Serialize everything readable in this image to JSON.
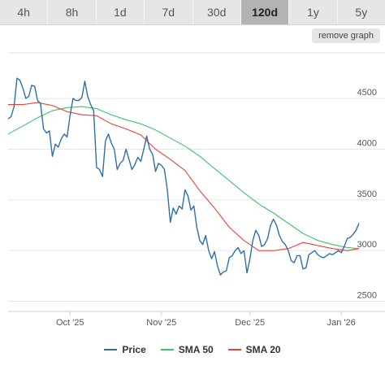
{
  "toolbar": {
    "tabs": [
      "4h",
      "8h",
      "1d",
      "7d",
      "30d",
      "120d",
      "1y",
      "5y"
    ],
    "active_index": 5,
    "remove_label": "remove graph"
  },
  "chart_data": {
    "type": "line",
    "x_start": "2025-09-10",
    "x_end": "2026-01-07",
    "ylim": [
      2400,
      4950
    ],
    "y_ticks": [
      2500,
      3000,
      3500,
      4000,
      4500
    ],
    "x_ticks": [
      {
        "date": "2025-10-01",
        "label": "Oct '25"
      },
      {
        "date": "2025-11-01",
        "label": "Nov '25"
      },
      {
        "date": "2025-12-01",
        "label": "Dec '25"
      },
      {
        "date": "2026-01-01",
        "label": "Jan '26"
      }
    ],
    "grid": true,
    "legend_position": "bottom",
    "colors": {
      "price": "#2f6fa8",
      "sma50": "#3cc46a",
      "sma20": "#e8433a"
    },
    "series": [
      {
        "name": "Price",
        "key": "price",
        "points": [
          [
            "2025-09-10",
            4300
          ],
          [
            "2025-09-11",
            4320
          ],
          [
            "2025-09-12",
            4420
          ],
          [
            "2025-09-13",
            4700
          ],
          [
            "2025-09-14",
            4680
          ],
          [
            "2025-09-15",
            4600
          ],
          [
            "2025-09-16",
            4500
          ],
          [
            "2025-09-17",
            4520
          ],
          [
            "2025-09-18",
            4630
          ],
          [
            "2025-09-19",
            4620
          ],
          [
            "2025-09-20",
            4480
          ],
          [
            "2025-09-21",
            4450
          ],
          [
            "2025-09-22",
            4200
          ],
          [
            "2025-09-23",
            4160
          ],
          [
            "2025-09-24",
            4180
          ],
          [
            "2025-09-25",
            3930
          ],
          [
            "2025-09-26",
            4050
          ],
          [
            "2025-09-27",
            4020
          ],
          [
            "2025-09-28",
            4100
          ],
          [
            "2025-09-29",
            4150
          ],
          [
            "2025-09-30",
            4120
          ],
          [
            "2025-10-01",
            4330
          ],
          [
            "2025-10-02",
            4500
          ],
          [
            "2025-10-03",
            4480
          ],
          [
            "2025-10-04",
            4480
          ],
          [
            "2025-10-05",
            4510
          ],
          [
            "2025-10-06",
            4670
          ],
          [
            "2025-10-07",
            4520
          ],
          [
            "2025-10-08",
            4440
          ],
          [
            "2025-10-09",
            4380
          ],
          [
            "2025-10-10",
            3820
          ],
          [
            "2025-10-11",
            3800
          ],
          [
            "2025-10-12",
            3730
          ],
          [
            "2025-10-13",
            4080
          ],
          [
            "2025-10-14",
            4150
          ],
          [
            "2025-10-15",
            4060
          ],
          [
            "2025-10-16",
            4000
          ],
          [
            "2025-10-17",
            3800
          ],
          [
            "2025-10-18",
            3860
          ],
          [
            "2025-10-19",
            3890
          ],
          [
            "2025-10-20",
            4000
          ],
          [
            "2025-10-21",
            3900
          ],
          [
            "2025-10-22",
            3800
          ],
          [
            "2025-10-23",
            3850
          ],
          [
            "2025-10-24",
            3920
          ],
          [
            "2025-10-25",
            3880
          ],
          [
            "2025-10-26",
            4000
          ],
          [
            "2025-10-27",
            4130
          ],
          [
            "2025-10-28",
            4000
          ],
          [
            "2025-10-29",
            3950
          ],
          [
            "2025-10-30",
            3780
          ],
          [
            "2025-10-31",
            3860
          ],
          [
            "2025-11-01",
            3840
          ],
          [
            "2025-11-02",
            3800
          ],
          [
            "2025-11-03",
            3600
          ],
          [
            "2025-11-04",
            3280
          ],
          [
            "2025-11-05",
            3420
          ],
          [
            "2025-11-06",
            3360
          ],
          [
            "2025-11-07",
            3440
          ],
          [
            "2025-11-08",
            3410
          ],
          [
            "2025-11-09",
            3600
          ],
          [
            "2025-11-10",
            3540
          ],
          [
            "2025-11-11",
            3400
          ],
          [
            "2025-11-12",
            3440
          ],
          [
            "2025-11-13",
            3230
          ],
          [
            "2025-11-14",
            3100
          ],
          [
            "2025-11-15",
            3060
          ],
          [
            "2025-11-16",
            3150
          ],
          [
            "2025-11-17",
            3000
          ],
          [
            "2025-11-18",
            2920
          ],
          [
            "2025-11-19",
            2990
          ],
          [
            "2025-11-20",
            2850
          ],
          [
            "2025-11-21",
            2760
          ],
          [
            "2025-11-22",
            2790
          ],
          [
            "2025-11-23",
            2800
          ],
          [
            "2025-11-24",
            2930
          ],
          [
            "2025-11-25",
            2950
          ],
          [
            "2025-11-26",
            3000
          ],
          [
            "2025-11-27",
            3030
          ],
          [
            "2025-11-28",
            2970
          ],
          [
            "2025-11-29",
            3000
          ],
          [
            "2025-11-30",
            2780
          ],
          [
            "2025-12-01",
            2920
          ],
          [
            "2025-12-02",
            3100
          ],
          [
            "2025-12-03",
            3200
          ],
          [
            "2025-12-04",
            3150
          ],
          [
            "2025-12-05",
            3040
          ],
          [
            "2025-12-06",
            3060
          ],
          [
            "2025-12-07",
            3120
          ],
          [
            "2025-12-08",
            3250
          ],
          [
            "2025-12-09",
            3310
          ],
          [
            "2025-12-10",
            3250
          ],
          [
            "2025-12-11",
            3150
          ],
          [
            "2025-12-12",
            3090
          ],
          [
            "2025-12-13",
            3060
          ],
          [
            "2025-12-14",
            3000
          ],
          [
            "2025-12-15",
            2900
          ],
          [
            "2025-12-16",
            2880
          ],
          [
            "2025-12-17",
            2950
          ],
          [
            "2025-12-18",
            2950
          ],
          [
            "2025-12-19",
            2820
          ],
          [
            "2025-12-20",
            2830
          ],
          [
            "2025-12-21",
            2960
          ],
          [
            "2025-12-22",
            2980
          ],
          [
            "2025-12-23",
            3000
          ],
          [
            "2025-12-24",
            2960
          ],
          [
            "2025-12-25",
            2940
          ],
          [
            "2025-12-26",
            2930
          ],
          [
            "2025-12-27",
            2950
          ],
          [
            "2025-12-28",
            2970
          ],
          [
            "2025-12-29",
            2960
          ],
          [
            "2025-12-30",
            2980
          ],
          [
            "2025-12-31",
            3000
          ],
          [
            "2026-01-01",
            2980
          ],
          [
            "2026-01-02",
            3040
          ],
          [
            "2026-01-03",
            3120
          ],
          [
            "2026-01-04",
            3130
          ],
          [
            "2026-01-05",
            3160
          ],
          [
            "2026-01-06",
            3200
          ],
          [
            "2026-01-07",
            3270
          ]
        ]
      },
      {
        "name": "SMA 50",
        "key": "sma50",
        "points": [
          [
            "2025-09-10",
            4150
          ],
          [
            "2025-09-15",
            4230
          ],
          [
            "2025-09-20",
            4310
          ],
          [
            "2025-09-25",
            4380
          ],
          [
            "2025-09-30",
            4410
          ],
          [
            "2025-10-05",
            4420
          ],
          [
            "2025-10-10",
            4400
          ],
          [
            "2025-10-15",
            4340
          ],
          [
            "2025-10-20",
            4290
          ],
          [
            "2025-10-25",
            4250
          ],
          [
            "2025-10-30",
            4190
          ],
          [
            "2025-11-04",
            4110
          ],
          [
            "2025-11-09",
            4030
          ],
          [
            "2025-11-14",
            3930
          ],
          [
            "2025-11-19",
            3810
          ],
          [
            "2025-11-24",
            3690
          ],
          [
            "2025-11-29",
            3570
          ],
          [
            "2025-12-04",
            3460
          ],
          [
            "2025-12-09",
            3370
          ],
          [
            "2025-12-14",
            3270
          ],
          [
            "2025-12-19",
            3170
          ],
          [
            "2025-12-24",
            3100
          ],
          [
            "2025-12-29",
            3060
          ],
          [
            "2026-01-03",
            3030
          ],
          [
            "2026-01-07",
            3020
          ]
        ]
      },
      {
        "name": "SMA 20",
        "key": "sma20",
        "points": [
          [
            "2025-09-10",
            4440
          ],
          [
            "2025-09-15",
            4440
          ],
          [
            "2025-09-20",
            4460
          ],
          [
            "2025-09-25",
            4430
          ],
          [
            "2025-09-30",
            4370
          ],
          [
            "2025-10-05",
            4340
          ],
          [
            "2025-10-10",
            4330
          ],
          [
            "2025-10-15",
            4250
          ],
          [
            "2025-10-20",
            4200
          ],
          [
            "2025-10-25",
            4140
          ],
          [
            "2025-10-30",
            4000
          ],
          [
            "2025-11-04",
            3900
          ],
          [
            "2025-11-09",
            3790
          ],
          [
            "2025-11-14",
            3590
          ],
          [
            "2025-11-19",
            3420
          ],
          [
            "2025-11-24",
            3230
          ],
          [
            "2025-11-29",
            3100
          ],
          [
            "2025-12-04",
            3000
          ],
          [
            "2025-12-09",
            3000
          ],
          [
            "2025-12-14",
            3020
          ],
          [
            "2025-12-19",
            3080
          ],
          [
            "2025-12-24",
            3050
          ],
          [
            "2025-12-29",
            3020
          ],
          [
            "2026-01-03",
            3000
          ],
          [
            "2026-01-07",
            3020
          ]
        ]
      }
    ]
  }
}
